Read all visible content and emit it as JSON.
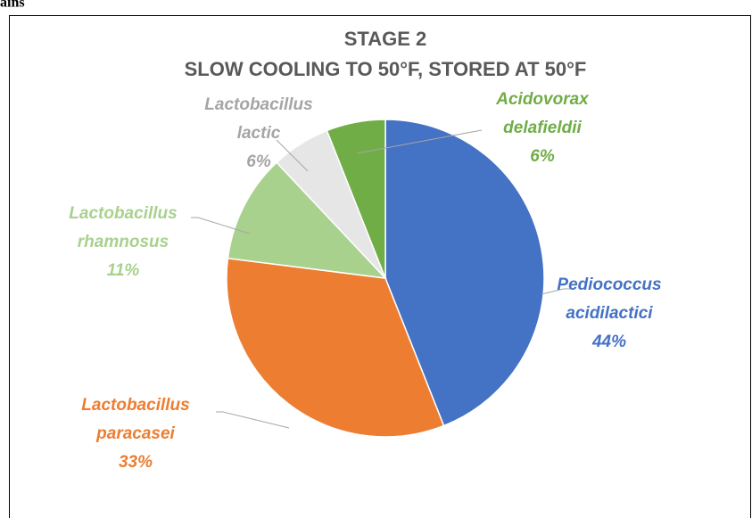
{
  "page_fragment": "ains",
  "chart_data": {
    "type": "pie",
    "title": "STAGE 2",
    "subtitle": "SLOW COOLING TO 50°F, STORED AT 50°F",
    "categories": [
      "Pediococcus acidilactici",
      "Lactobacillus paracasei",
      "Lactobacillus rhamnosus",
      "Lactobacillus lactic",
      "Acidovorax delafieldii"
    ],
    "values": [
      44,
      33,
      11,
      6,
      6
    ],
    "value_labels": [
      "44%",
      "33%",
      "11%",
      "6%",
      "6%"
    ],
    "colors": [
      "#4472c4",
      "#ed7d31",
      "#a9d18e",
      "#e7e6e6",
      "#70ad47"
    ],
    "label_colors": [
      "#4472c4",
      "#ed7d31",
      "#a9d18e",
      "#a5a5a5",
      "#70ad47"
    ]
  }
}
